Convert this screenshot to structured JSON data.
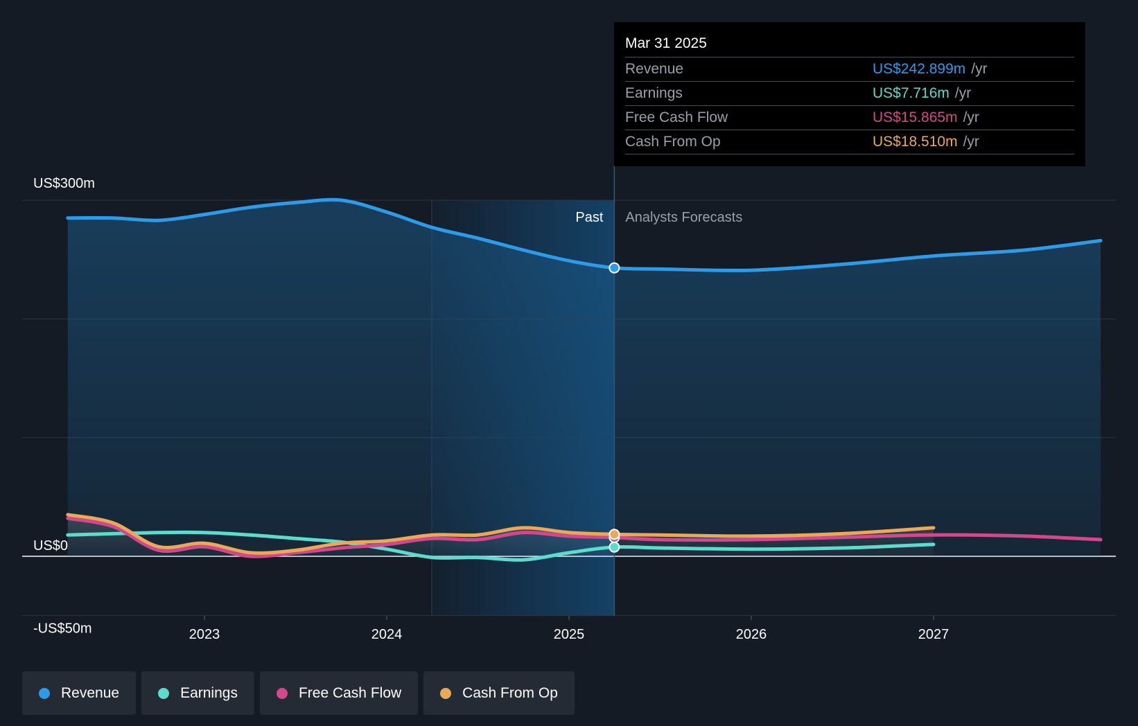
{
  "chart_data": {
    "type": "line",
    "y_axis": {
      "unit_prefix": "US$",
      "ticks": [
        {
          "value": 300,
          "label": "US$300m"
        },
        {
          "value": 0,
          "label": "US$0"
        },
        {
          "value": -50,
          "label": "-US$50m"
        }
      ],
      "ylim": [
        -50,
        300
      ],
      "grid_values": [
        300,
        200,
        100,
        0,
        -50
      ]
    },
    "x_axis": {
      "ticks": [
        "2023",
        "2024",
        "2025",
        "2026",
        "2027"
      ],
      "range": [
        "2022-04",
        "2027-12"
      ]
    },
    "past_label": "Past",
    "forecast_label": "Analysts Forecasts",
    "divider_date": "2025-03-31",
    "series": [
      {
        "name": "Revenue",
        "color": "#2d9be8",
        "points": [
          [
            "2022-04",
            285
          ],
          [
            "2022-07",
            285
          ],
          [
            "2022-10",
            283
          ],
          [
            "2023-01",
            288
          ],
          [
            "2023-04",
            294
          ],
          [
            "2023-07",
            298
          ],
          [
            "2023-10",
            300
          ],
          [
            "2024-01",
            290
          ],
          [
            "2024-04",
            277
          ],
          [
            "2024-07",
            268
          ],
          [
            "2024-10",
            258
          ],
          [
            "2025-01",
            249
          ],
          [
            "2025-03-31",
            243
          ],
          [
            "2025-07",
            242
          ],
          [
            "2026-01",
            241
          ],
          [
            "2026-07",
            246
          ],
          [
            "2027-01",
            253
          ],
          [
            "2027-07",
            258
          ],
          [
            "2027-12",
            266
          ]
        ]
      },
      {
        "name": "Earnings",
        "color": "#5ddbcc",
        "points": [
          [
            "2022-04",
            18
          ],
          [
            "2022-07",
            19
          ],
          [
            "2022-10",
            20
          ],
          [
            "2023-01",
            20
          ],
          [
            "2023-04",
            18
          ],
          [
            "2023-07",
            15
          ],
          [
            "2023-10",
            12
          ],
          [
            "2024-01",
            6
          ],
          [
            "2024-04",
            -1
          ],
          [
            "2024-07",
            -1
          ],
          [
            "2024-10",
            -3
          ],
          [
            "2025-01",
            3
          ],
          [
            "2025-03-31",
            7.716
          ],
          [
            "2025-07",
            7
          ],
          [
            "2026-01",
            6
          ],
          [
            "2026-07",
            7
          ],
          [
            "2027-01",
            10
          ]
        ]
      },
      {
        "name": "Free Cash Flow",
        "color": "#d4478d",
        "points": [
          [
            "2022-04",
            32
          ],
          [
            "2022-07",
            25
          ],
          [
            "2022-10",
            5
          ],
          [
            "2023-01",
            8
          ],
          [
            "2023-04",
            0
          ],
          [
            "2023-07",
            3
          ],
          [
            "2023-10",
            7
          ],
          [
            "2024-01",
            10
          ],
          [
            "2024-04",
            15
          ],
          [
            "2024-07",
            14
          ],
          [
            "2024-10",
            20
          ],
          [
            "2025-01",
            17
          ],
          [
            "2025-03-31",
            15.865
          ],
          [
            "2025-07",
            14
          ],
          [
            "2026-01",
            14
          ],
          [
            "2026-07",
            16
          ],
          [
            "2027-01",
            18
          ],
          [
            "2027-07",
            17
          ],
          [
            "2027-12",
            14
          ]
        ]
      },
      {
        "name": "Cash From Op",
        "color": "#e8aa58",
        "points": [
          [
            "2022-04",
            35
          ],
          [
            "2022-07",
            28
          ],
          [
            "2022-10",
            8
          ],
          [
            "2023-01",
            11
          ],
          [
            "2023-04",
            3
          ],
          [
            "2023-07",
            5
          ],
          [
            "2023-10",
            11
          ],
          [
            "2024-01",
            13
          ],
          [
            "2024-04",
            18
          ],
          [
            "2024-07",
            18
          ],
          [
            "2024-10",
            24
          ],
          [
            "2025-01",
            20
          ],
          [
            "2025-03-31",
            18.51
          ],
          [
            "2025-07",
            18
          ],
          [
            "2026-01",
            17
          ],
          [
            "2026-07",
            19
          ],
          [
            "2027-01",
            24
          ]
        ]
      }
    ]
  },
  "tooltip": {
    "date": "Mar 31 2025",
    "rows": [
      {
        "label": "Revenue",
        "value": "US$242.899m",
        "unit": "/yr",
        "color": "#2d9be8"
      },
      {
        "label": "Earnings",
        "value": "US$7.716m",
        "unit": "/yr",
        "color": "#5ddbcc"
      },
      {
        "label": "Free Cash Flow",
        "value": "US$15.865m",
        "unit": "/yr",
        "color": "#d4478d"
      },
      {
        "label": "Cash From Op",
        "value": "US$18.510m",
        "unit": "/yr",
        "color": "#e8aa58"
      }
    ]
  },
  "legend": [
    {
      "label": "Revenue",
      "color": "#2d9be8"
    },
    {
      "label": "Earnings",
      "color": "#5ddbcc"
    },
    {
      "label": "Free Cash Flow",
      "color": "#d4478d"
    },
    {
      "label": "Cash From Op",
      "color": "#e8aa58"
    }
  ]
}
